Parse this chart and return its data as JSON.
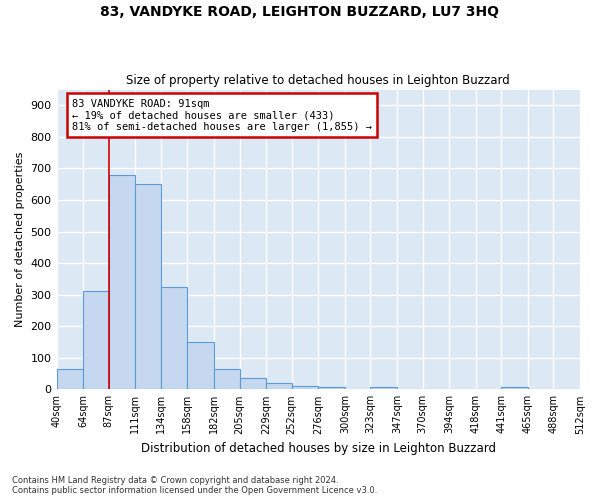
{
  "title": "83, VANDYKE ROAD, LEIGHTON BUZZARD, LU7 3HQ",
  "subtitle": "Size of property relative to detached houses in Leighton Buzzard",
  "xlabel": "Distribution of detached houses by size in Leighton Buzzard",
  "ylabel": "Number of detached properties",
  "categories": [
    "40sqm",
    "64sqm",
    "87sqm",
    "111sqm",
    "134sqm",
    "158sqm",
    "182sqm",
    "205sqm",
    "229sqm",
    "252sqm",
    "276sqm",
    "300sqm",
    "323sqm",
    "347sqm",
    "370sqm",
    "394sqm",
    "418sqm",
    "441sqm",
    "465sqm",
    "488sqm",
    "512sqm"
  ],
  "bar_edges": [
    40,
    64,
    87,
    111,
    134,
    158,
    182,
    205,
    229,
    252,
    276,
    300,
    323,
    347,
    370,
    394,
    418,
    441,
    465,
    488,
    512
  ],
  "bar_heights": [
    63,
    310,
    680,
    650,
    325,
    150,
    65,
    35,
    20,
    12,
    8,
    0,
    8,
    0,
    0,
    0,
    0,
    8,
    0,
    0
  ],
  "bar_color": "#c5d8f0",
  "bar_edge_color": "#5b9bd5",
  "property_line_x": 87,
  "vline_color": "#cc0000",
  "annotation_line1": "83 VANDYKE ROAD: 91sqm",
  "annotation_line2": "← 19% of detached houses are smaller (433)",
  "annotation_line3": "81% of semi-detached houses are larger (1,855) →",
  "annotation_box_color": "#cc0000",
  "ylim": [
    0,
    950
  ],
  "yticks": [
    0,
    100,
    200,
    300,
    400,
    500,
    600,
    700,
    800,
    900
  ],
  "background_color": "#dde8f5",
  "grid_color": "#ffffff",
  "footer_line1": "Contains HM Land Registry data © Crown copyright and database right 2024.",
  "footer_line2": "Contains public sector information licensed under the Open Government Licence v3.0.",
  "title_fontsize": 10,
  "subtitle_fontsize": 8.5,
  "xlabel_fontsize": 8.5,
  "ylabel_fontsize": 8,
  "annotation_fontsize": 7.5,
  "footer_fontsize": 6
}
